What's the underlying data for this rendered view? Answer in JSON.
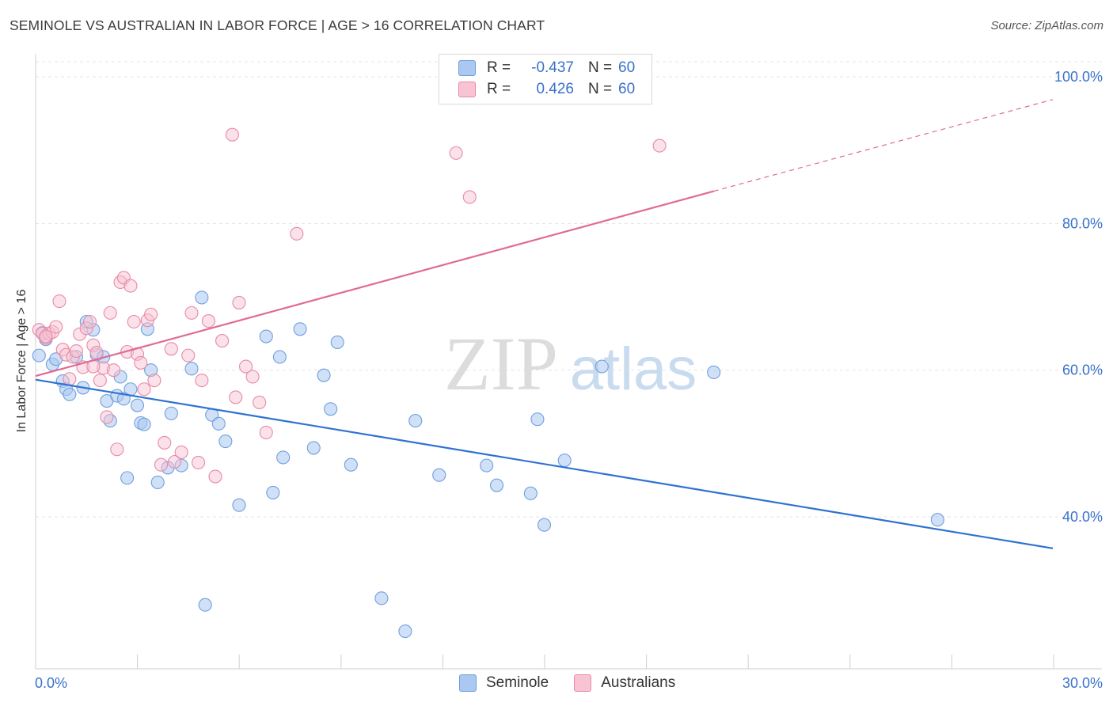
{
  "header": {
    "title": "SEMINOLE VS AUSTRALIAN IN LABOR FORCE | AGE > 16 CORRELATION CHART",
    "source": "Source: ZipAtlas.com"
  },
  "watermark": {
    "zip": "ZIP",
    "atlas": "atlas"
  },
  "legend": {
    "rows": [
      {
        "r_label": "R =",
        "r_value": "-0.437",
        "n_label": "N =",
        "n_value": "60",
        "color": "#aac8f0",
        "border": "#6f9fe0"
      },
      {
        "r_label": "R =",
        "r_value": "0.426",
        "n_label": "N =",
        "n_value": "60",
        "color": "#f8c4d4",
        "border": "#e88aa6"
      }
    ]
  },
  "bottom_legend": [
    {
      "label": "Seminole",
      "color": "#aac8f0",
      "border": "#6f9fe0"
    },
    {
      "label": "Australians",
      "color": "#f8c4d4",
      "border": "#e88aa6"
    }
  ],
  "axes": {
    "ylabel": "In Labor Force | Age > 16",
    "x_tick_left": "0.0%",
    "x_tick_right": "30.0%",
    "y_ticks": [
      "100.0%",
      "80.0%",
      "60.0%",
      "40.0%"
    ]
  },
  "chart_data": {
    "type": "scatter",
    "xlabel": "",
    "ylabel": "In Labor Force | Age > 16",
    "xlim": [
      0,
      30
    ],
    "ylim": [
      20,
      100
    ],
    "y_ticks": [
      40,
      60,
      80,
      100
    ],
    "grid": true,
    "series": [
      {
        "name": "Seminole",
        "color": "#6f9fe0",
        "fill": "#aac8f0",
        "points": [
          [
            0.2,
            65.1
          ],
          [
            0.3,
            64.2
          ],
          [
            0.5,
            60.8
          ],
          [
            0.6,
            61.5
          ],
          [
            0.8,
            58.5
          ],
          [
            0.9,
            57.4
          ],
          [
            1.0,
            56.7
          ],
          [
            1.2,
            61.8
          ],
          [
            1.4,
            57.6
          ],
          [
            1.5,
            66.6
          ],
          [
            1.7,
            65.5
          ],
          [
            1.8,
            62.1
          ],
          [
            2.0,
            61.8
          ],
          [
            2.1,
            55.8
          ],
          [
            2.2,
            53.1
          ],
          [
            2.4,
            56.5
          ],
          [
            2.5,
            59.1
          ],
          [
            2.6,
            56.1
          ],
          [
            2.7,
            45.3
          ],
          [
            2.8,
            57.4
          ],
          [
            3.0,
            55.2
          ],
          [
            3.1,
            52.8
          ],
          [
            3.2,
            52.6
          ],
          [
            3.3,
            65.6
          ],
          [
            3.6,
            44.7
          ],
          [
            3.9,
            46.7
          ],
          [
            4.0,
            54.1
          ],
          [
            4.3,
            47.0
          ],
          [
            4.6,
            60.2
          ],
          [
            4.9,
            69.9
          ],
          [
            5.0,
            28.0
          ],
          [
            5.2,
            53.9
          ],
          [
            5.4,
            52.7
          ],
          [
            5.6,
            50.3
          ],
          [
            6.0,
            41.6
          ],
          [
            6.8,
            64.6
          ],
          [
            7.0,
            43.3
          ],
          [
            7.2,
            61.8
          ],
          [
            7.3,
            48.1
          ],
          [
            7.8,
            65.6
          ],
          [
            8.2,
            49.4
          ],
          [
            8.5,
            59.3
          ],
          [
            8.7,
            54.7
          ],
          [
            8.9,
            63.8
          ],
          [
            9.3,
            47.1
          ],
          [
            10.2,
            28.9
          ],
          [
            10.9,
            24.4
          ],
          [
            11.2,
            53.1
          ],
          [
            11.9,
            45.7
          ],
          [
            13.3,
            47.0
          ],
          [
            13.6,
            44.3
          ],
          [
            14.6,
            43.2
          ],
          [
            14.8,
            53.3
          ],
          [
            15.0,
            38.9
          ],
          [
            15.6,
            47.7
          ],
          [
            16.7,
            60.5
          ],
          [
            20.0,
            59.7
          ],
          [
            26.6,
            39.6
          ],
          [
            0.1,
            62.0
          ],
          [
            3.4,
            60.0
          ]
        ]
      },
      {
        "name": "Australians",
        "color": "#e88aa6",
        "fill": "#f8c4d4",
        "points": [
          [
            0.1,
            65.5
          ],
          [
            0.2,
            65.0
          ],
          [
            0.3,
            64.4
          ],
          [
            0.4,
            65.0
          ],
          [
            0.5,
            65.2
          ],
          [
            0.6,
            65.9
          ],
          [
            0.7,
            69.4
          ],
          [
            0.8,
            62.8
          ],
          [
            0.9,
            62.1
          ],
          [
            1.0,
            58.8
          ],
          [
            1.1,
            61.8
          ],
          [
            1.2,
            62.6
          ],
          [
            1.3,
            64.9
          ],
          [
            1.4,
            60.4
          ],
          [
            1.5,
            65.7
          ],
          [
            1.6,
            66.6
          ],
          [
            1.7,
            63.4
          ],
          [
            1.8,
            62.4
          ],
          [
            1.9,
            58.6
          ],
          [
            2.0,
            60.3
          ],
          [
            2.1,
            53.6
          ],
          [
            2.2,
            67.8
          ],
          [
            2.3,
            60.0
          ],
          [
            2.4,
            49.2
          ],
          [
            2.5,
            72.0
          ],
          [
            2.6,
            72.6
          ],
          [
            2.7,
            62.5
          ],
          [
            2.8,
            71.5
          ],
          [
            2.9,
            66.6
          ],
          [
            3.0,
            62.2
          ],
          [
            3.1,
            61.0
          ],
          [
            3.2,
            57.4
          ],
          [
            3.3,
            66.8
          ],
          [
            3.4,
            67.6
          ],
          [
            3.5,
            58.6
          ],
          [
            3.7,
            47.1
          ],
          [
            3.8,
            50.1
          ],
          [
            4.0,
            62.9
          ],
          [
            4.1,
            47.5
          ],
          [
            4.3,
            48.8
          ],
          [
            4.5,
            62.0
          ],
          [
            4.6,
            67.8
          ],
          [
            4.8,
            47.4
          ],
          [
            4.9,
            58.6
          ],
          [
            5.1,
            66.7
          ],
          [
            5.3,
            45.5
          ],
          [
            5.5,
            64.0
          ],
          [
            5.8,
            92.1
          ],
          [
            5.9,
            56.3
          ],
          [
            6.0,
            69.2
          ],
          [
            6.2,
            60.5
          ],
          [
            6.4,
            59.1
          ],
          [
            6.6,
            55.6
          ],
          [
            6.8,
            51.5
          ],
          [
            7.7,
            78.6
          ],
          [
            12.4,
            89.6
          ],
          [
            12.8,
            83.6
          ],
          [
            18.4,
            90.6
          ],
          [
            0.3,
            64.6
          ],
          [
            1.7,
            60.5
          ]
        ]
      }
    ],
    "trendlines": [
      {
        "series": "Seminole",
        "x": [
          0,
          30
        ],
        "y": [
          58.7,
          35.7
        ],
        "color": "#2f72d0"
      },
      {
        "series": "Australians",
        "x": [
          0,
          20
        ],
        "y": [
          59.2,
          84.4
        ],
        "dashed_extension_to": [
          30,
          96.9
        ],
        "color": "#e06a93"
      }
    ]
  }
}
